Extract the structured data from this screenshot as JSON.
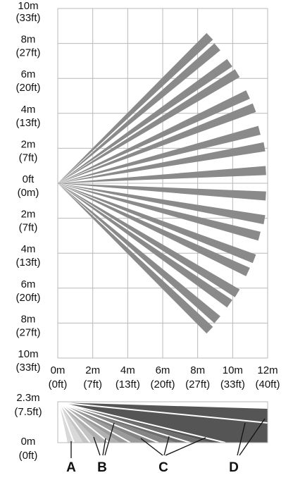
{
  "top_view": {
    "y_labels": [
      [
        "10m",
        "(33ft)"
      ],
      [
        "8m",
        "(27ft)"
      ],
      [
        "6m",
        "(20ft)"
      ],
      [
        "4m",
        "(13ft)"
      ],
      [
        "2m",
        "(7ft)"
      ],
      [
        "0ft",
        "(0m)"
      ],
      [
        "2m",
        "(7ft)"
      ],
      [
        "4m",
        "(13ft)"
      ],
      [
        "6m",
        "(20ft)"
      ],
      [
        "8m",
        "(27ft)"
      ],
      [
        "10m",
        "(33ft)"
      ]
    ],
    "x_labels": [
      [
        "0m",
        "(0ft)"
      ],
      [
        "2m",
        "(7ft)"
      ],
      [
        "4m",
        "(13ft)"
      ],
      [
        "6m",
        "(20ft)"
      ],
      [
        "8m",
        "(27ft)"
      ],
      [
        "10m",
        "(33ft)"
      ],
      [
        "12m",
        "(40ft)"
      ]
    ]
  },
  "side_view": {
    "y_labels": [
      [
        "2.3m",
        "(7.5ft)"
      ],
      [
        "0m",
        "(0ft)"
      ]
    ],
    "zones": [
      "A",
      "B",
      "C",
      "D"
    ]
  }
}
